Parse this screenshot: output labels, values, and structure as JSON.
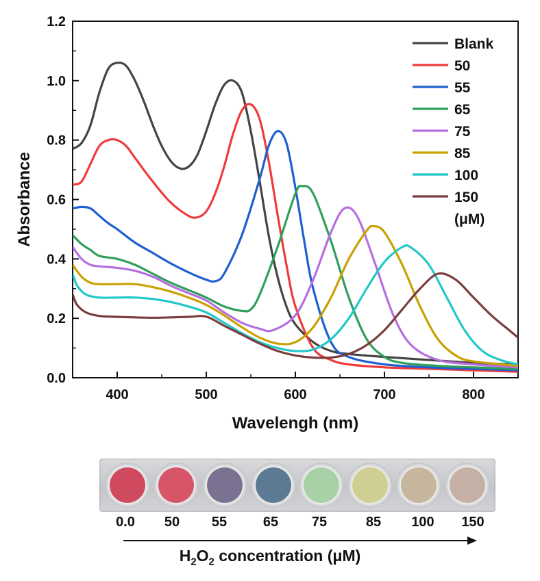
{
  "chart_data": {
    "type": "line",
    "xlabel": "Wavelengh (nm)",
    "ylabel": "Absorbance",
    "xlim": [
      350,
      850
    ],
    "ylim": [
      0.0,
      1.2
    ],
    "xticks": [
      "400",
      "500",
      "600",
      "700",
      "800"
    ],
    "yticks": [
      "0.0",
      "0.2",
      "0.4",
      "0.6",
      "0.8",
      "1.0",
      "1.2"
    ],
    "legend_unit": "(μM)",
    "legend_position": "top-right",
    "series": [
      {
        "name": "Blank",
        "color": "#444444",
        "points": [
          [
            350,
            0.77
          ],
          [
            360,
            0.79
          ],
          [
            370,
            0.85
          ],
          [
            380,
            0.96
          ],
          [
            390,
            1.04
          ],
          [
            400,
            1.06
          ],
          [
            410,
            1.05
          ],
          [
            420,
            1.0
          ],
          [
            430,
            0.93
          ],
          [
            440,
            0.85
          ],
          [
            450,
            0.78
          ],
          [
            460,
            0.73
          ],
          [
            470,
            0.705
          ],
          [
            480,
            0.71
          ],
          [
            490,
            0.75
          ],
          [
            500,
            0.83
          ],
          [
            510,
            0.92
          ],
          [
            520,
            0.985
          ],
          [
            530,
            1.0
          ],
          [
            540,
            0.96
          ],
          [
            550,
            0.83
          ],
          [
            560,
            0.66
          ],
          [
            570,
            0.48
          ],
          [
            580,
            0.34
          ],
          [
            590,
            0.24
          ],
          [
            600,
            0.18
          ],
          [
            620,
            0.12
          ],
          [
            640,
            0.09
          ],
          [
            660,
            0.08
          ],
          [
            700,
            0.07
          ],
          [
            750,
            0.06
          ],
          [
            800,
            0.05
          ],
          [
            850,
            0.045
          ]
        ]
      },
      {
        "name": "50",
        "color": "#ee3b3b",
        "points": [
          [
            350,
            0.65
          ],
          [
            360,
            0.66
          ],
          [
            370,
            0.72
          ],
          [
            380,
            0.78
          ],
          [
            390,
            0.8
          ],
          [
            400,
            0.8
          ],
          [
            410,
            0.78
          ],
          [
            420,
            0.74
          ],
          [
            440,
            0.66
          ],
          [
            460,
            0.59
          ],
          [
            480,
            0.545
          ],
          [
            490,
            0.54
          ],
          [
            500,
            0.56
          ],
          [
            510,
            0.62
          ],
          [
            520,
            0.71
          ],
          [
            530,
            0.82
          ],
          [
            540,
            0.9
          ],
          [
            550,
            0.92
          ],
          [
            560,
            0.87
          ],
          [
            570,
            0.73
          ],
          [
            580,
            0.55
          ],
          [
            590,
            0.38
          ],
          [
            600,
            0.24
          ],
          [
            620,
            0.1
          ],
          [
            640,
            0.06
          ],
          [
            660,
            0.045
          ],
          [
            700,
            0.035
          ],
          [
            750,
            0.03
          ],
          [
            800,
            0.025
          ],
          [
            850,
            0.02
          ]
        ]
      },
      {
        "name": "55",
        "color": "#1f5fcf",
        "points": [
          [
            350,
            0.57
          ],
          [
            360,
            0.575
          ],
          [
            370,
            0.57
          ],
          [
            380,
            0.545
          ],
          [
            390,
            0.52
          ],
          [
            400,
            0.5
          ],
          [
            420,
            0.455
          ],
          [
            440,
            0.42
          ],
          [
            460,
            0.385
          ],
          [
            480,
            0.355
          ],
          [
            500,
            0.33
          ],
          [
            510,
            0.325
          ],
          [
            520,
            0.35
          ],
          [
            540,
            0.48
          ],
          [
            560,
            0.67
          ],
          [
            570,
            0.78
          ],
          [
            580,
            0.83
          ],
          [
            590,
            0.79
          ],
          [
            600,
            0.64
          ],
          [
            610,
            0.46
          ],
          [
            620,
            0.3
          ],
          [
            640,
            0.12
          ],
          [
            660,
            0.07
          ],
          [
            700,
            0.045
          ],
          [
            750,
            0.035
          ],
          [
            800,
            0.03
          ],
          [
            850,
            0.025
          ]
        ]
      },
      {
        "name": "65",
        "color": "#2e9e5b",
        "points": [
          [
            350,
            0.48
          ],
          [
            360,
            0.45
          ],
          [
            370,
            0.43
          ],
          [
            380,
            0.41
          ],
          [
            400,
            0.4
          ],
          [
            420,
            0.38
          ],
          [
            440,
            0.35
          ],
          [
            460,
            0.32
          ],
          [
            480,
            0.295
          ],
          [
            500,
            0.27
          ],
          [
            520,
            0.24
          ],
          [
            540,
            0.225
          ],
          [
            550,
            0.23
          ],
          [
            560,
            0.28
          ],
          [
            580,
            0.44
          ],
          [
            600,
            0.62
          ],
          [
            608,
            0.645
          ],
          [
            620,
            0.62
          ],
          [
            640,
            0.46
          ],
          [
            660,
            0.27
          ],
          [
            680,
            0.13
          ],
          [
            700,
            0.07
          ],
          [
            720,
            0.05
          ],
          [
            760,
            0.04
          ],
          [
            800,
            0.035
          ],
          [
            850,
            0.03
          ]
        ]
      },
      {
        "name": "75",
        "color": "#b66ee0",
        "points": [
          [
            350,
            0.44
          ],
          [
            360,
            0.4
          ],
          [
            370,
            0.38
          ],
          [
            380,
            0.375
          ],
          [
            400,
            0.37
          ],
          [
            420,
            0.36
          ],
          [
            440,
            0.34
          ],
          [
            460,
            0.31
          ],
          [
            480,
            0.285
          ],
          [
            500,
            0.26
          ],
          [
            520,
            0.22
          ],
          [
            540,
            0.185
          ],
          [
            560,
            0.165
          ],
          [
            575,
            0.16
          ],
          [
            600,
            0.21
          ],
          [
            620,
            0.33
          ],
          [
            640,
            0.49
          ],
          [
            655,
            0.57
          ],
          [
            670,
            0.54
          ],
          [
            690,
            0.38
          ],
          [
            710,
            0.21
          ],
          [
            730,
            0.11
          ],
          [
            760,
            0.06
          ],
          [
            800,
            0.045
          ],
          [
            850,
            0.035
          ]
        ]
      },
      {
        "name": "85",
        "color": "#c9a100",
        "points": [
          [
            350,
            0.38
          ],
          [
            360,
            0.34
          ],
          [
            370,
            0.32
          ],
          [
            380,
            0.315
          ],
          [
            400,
            0.315
          ],
          [
            420,
            0.315
          ],
          [
            440,
            0.305
          ],
          [
            460,
            0.29
          ],
          [
            480,
            0.27
          ],
          [
            500,
            0.245
          ],
          [
            520,
            0.21
          ],
          [
            540,
            0.17
          ],
          [
            560,
            0.135
          ],
          [
            580,
            0.115
          ],
          [
            600,
            0.12
          ],
          [
            620,
            0.17
          ],
          [
            640,
            0.27
          ],
          [
            660,
            0.4
          ],
          [
            680,
            0.495
          ],
          [
            688,
            0.51
          ],
          [
            700,
            0.49
          ],
          [
            720,
            0.38
          ],
          [
            740,
            0.24
          ],
          [
            760,
            0.13
          ],
          [
            780,
            0.075
          ],
          [
            800,
            0.055
          ],
          [
            850,
            0.04
          ]
        ]
      },
      {
        "name": "100",
        "color": "#22c8c8",
        "points": [
          [
            350,
            0.35
          ],
          [
            355,
            0.31
          ],
          [
            365,
            0.28
          ],
          [
            380,
            0.27
          ],
          [
            400,
            0.27
          ],
          [
            420,
            0.27
          ],
          [
            440,
            0.265
          ],
          [
            460,
            0.255
          ],
          [
            480,
            0.24
          ],
          [
            500,
            0.22
          ],
          [
            520,
            0.185
          ],
          [
            540,
            0.15
          ],
          [
            560,
            0.12
          ],
          [
            580,
            0.1
          ],
          [
            600,
            0.09
          ],
          [
            620,
            0.095
          ],
          [
            640,
            0.13
          ],
          [
            660,
            0.2
          ],
          [
            680,
            0.3
          ],
          [
            700,
            0.39
          ],
          [
            720,
            0.44
          ],
          [
            730,
            0.438
          ],
          [
            750,
            0.38
          ],
          [
            770,
            0.27
          ],
          [
            790,
            0.16
          ],
          [
            810,
            0.09
          ],
          [
            830,
            0.06
          ],
          [
            850,
            0.045
          ]
        ]
      },
      {
        "name": "150",
        "color": "#7a3d3d",
        "points": [
          [
            350,
            0.28
          ],
          [
            355,
            0.245
          ],
          [
            365,
            0.22
          ],
          [
            380,
            0.208
          ],
          [
            400,
            0.205
          ],
          [
            440,
            0.202
          ],
          [
            480,
            0.205
          ],
          [
            495,
            0.208
          ],
          [
            505,
            0.2
          ],
          [
            520,
            0.175
          ],
          [
            540,
            0.145
          ],
          [
            560,
            0.115
          ],
          [
            580,
            0.09
          ],
          [
            600,
            0.075
          ],
          [
            620,
            0.068
          ],
          [
            640,
            0.068
          ],
          [
            660,
            0.08
          ],
          [
            680,
            0.11
          ],
          [
            700,
            0.16
          ],
          [
            720,
            0.23
          ],
          [
            740,
            0.3
          ],
          [
            760,
            0.35
          ],
          [
            780,
            0.33
          ],
          [
            800,
            0.27
          ],
          [
            820,
            0.21
          ],
          [
            840,
            0.16
          ],
          [
            850,
            0.135
          ]
        ]
      }
    ]
  },
  "wells": {
    "colors": [
      "#cf4a5e",
      "#d65568",
      "#7a7290",
      "#5d7a94",
      "#a9d1a8",
      "#cfcf94",
      "#c6b69e",
      "#c4b0a4"
    ],
    "labels": [
      "0.0",
      "50",
      "55",
      "65",
      "75",
      "85",
      "100",
      "150"
    ]
  },
  "caption": {
    "h": "H",
    "sub2": "2",
    "o": "O",
    "sub2b": "2",
    "rest": " concentration (μM)"
  }
}
